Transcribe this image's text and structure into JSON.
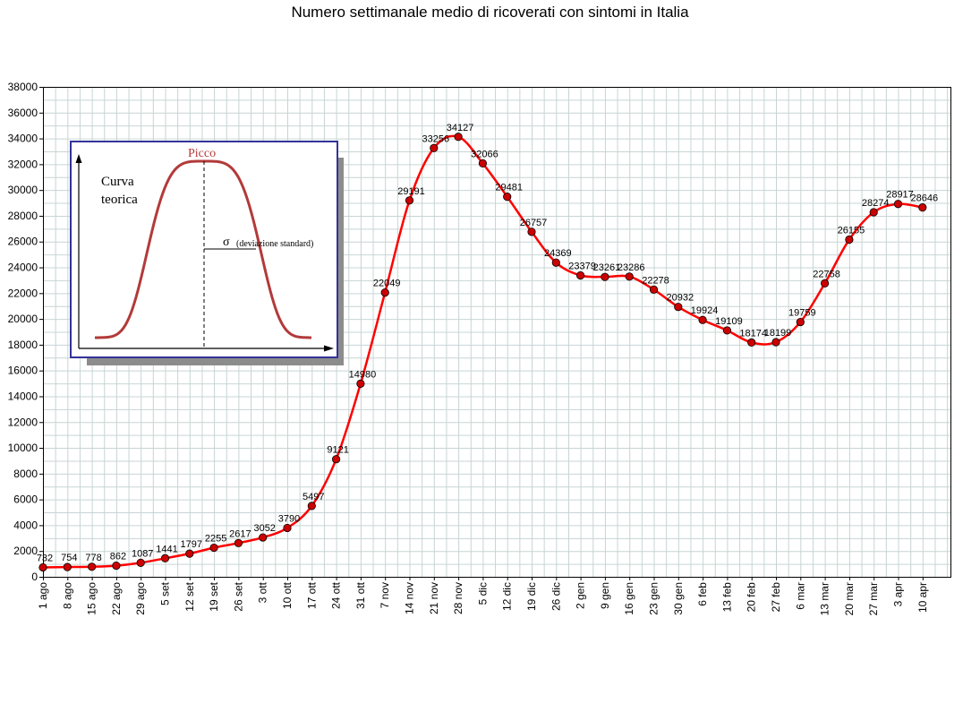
{
  "chart_data": {
    "type": "line",
    "title": "Numero settimanale medio di ricoverati con sintomi in Italia",
    "categories": [
      "1 ago",
      "8 ago",
      "15 ago",
      "22 ago",
      "29 ago",
      "5 set",
      "12 set",
      "19 set",
      "26 set",
      "3 ott",
      "10 ott",
      "17 ott",
      "24 ott",
      "31 ott",
      "7 nov",
      "14 nov",
      "21 nov",
      "28 nov",
      "5 dic",
      "12 dic",
      "19 dic",
      "26 dic",
      "2 gen",
      "9 gen",
      "16 gen",
      "23 gen",
      "30 gen",
      "6 feb",
      "13 feb",
      "20 feb",
      "27 feb",
      "6 mar",
      "13 mar",
      "20 mar",
      "27 mar",
      "3 apr",
      "10 apr"
    ],
    "series": [
      {
        "values": [
          732,
          754,
          778,
          862,
          1087,
          1441,
          1797,
          2255,
          2617,
          3052,
          3790,
          5497,
          9121,
          14980,
          22049,
          29191,
          33256,
          34127,
          32066,
          29481,
          26757,
          24369,
          23379,
          23261,
          23286,
          22278,
          20932,
          19924,
          19109,
          18174,
          18199,
          19759,
          22758,
          26155,
          28274,
          28917,
          28646
        ],
        "color": "#ff0000"
      }
    ],
    "ylim": [
      0,
      38000
    ],
    "ytick_step": 2000,
    "grid": true,
    "marker_color": "#cc0000",
    "inset": {
      "peak_label": "Picco",
      "curve_label_line1": "Curva",
      "curve_label_line2": "teorica",
      "sigma_symbol": "σ",
      "sigma_label": "(deviazione standard)",
      "border_color": "#33339a",
      "curve_color": "#b33a3a"
    }
  }
}
